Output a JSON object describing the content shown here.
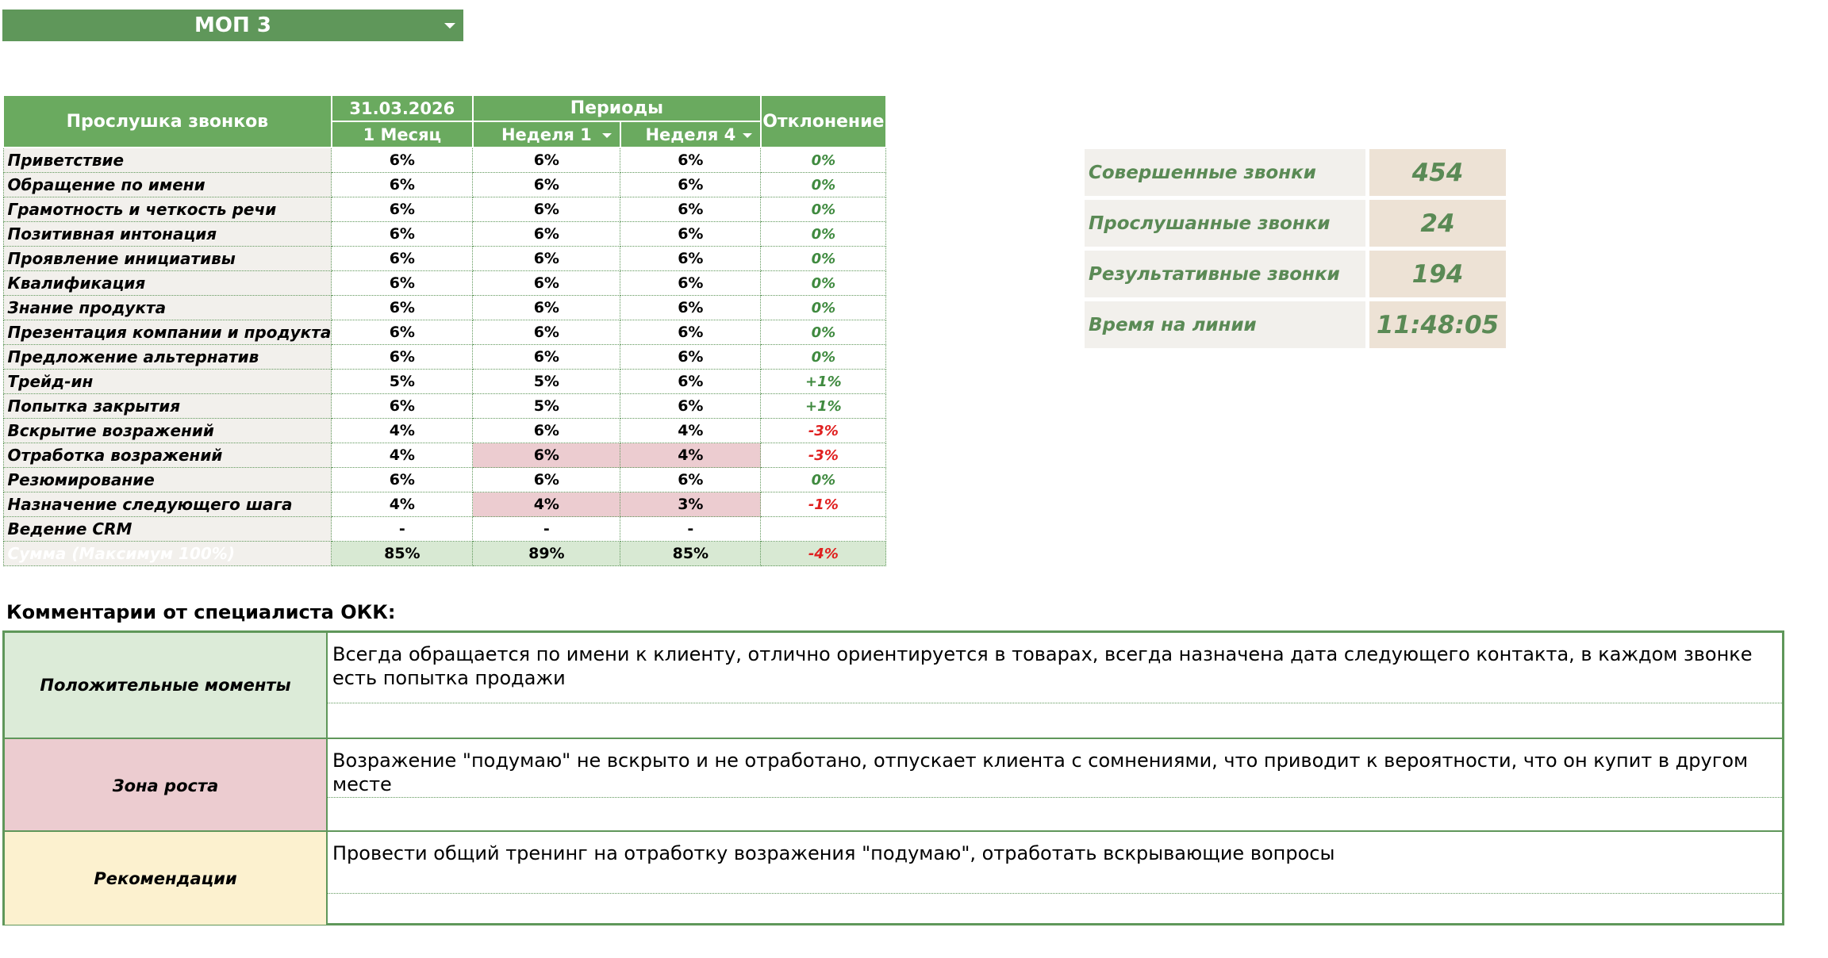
{
  "selector": {
    "label": "МОП 3"
  },
  "table": {
    "header": {
      "title": "Прослушка звонков",
      "date": "31.03.2026",
      "periods": "Периоды",
      "deviation": "Отклонение",
      "col_month": "1 Месяц",
      "col_week1": "Неделя 1",
      "col_week4": "Неделя 4"
    },
    "rows": [
      {
        "label": "Приветствие",
        "month": "6%",
        "week1": "6%",
        "week4": "6%",
        "dev": "0%",
        "tone": "pos",
        "hl": false
      },
      {
        "label": "Обращение по имени",
        "month": "6%",
        "week1": "6%",
        "week4": "6%",
        "dev": "0%",
        "tone": "pos",
        "hl": false
      },
      {
        "label": "Грамотность и четкость речи",
        "month": "6%",
        "week1": "6%",
        "week4": "6%",
        "dev": "0%",
        "tone": "pos",
        "hl": false
      },
      {
        "label": "Позитивная интонация",
        "month": "6%",
        "week1": "6%",
        "week4": "6%",
        "dev": "0%",
        "tone": "pos",
        "hl": false
      },
      {
        "label": "Проявление инициативы",
        "month": "6%",
        "week1": "6%",
        "week4": "6%",
        "dev": "0%",
        "tone": "pos",
        "hl": false
      },
      {
        "label": "Квалификация",
        "month": "6%",
        "week1": "6%",
        "week4": "6%",
        "dev": "0%",
        "tone": "pos",
        "hl": false
      },
      {
        "label": "Знание продукта",
        "month": "6%",
        "week1": "6%",
        "week4": "6%",
        "dev": "0%",
        "tone": "pos",
        "hl": false
      },
      {
        "label": "Презентация компании и продукта",
        "month": "6%",
        "week1": "6%",
        "week4": "6%",
        "dev": "0%",
        "tone": "pos",
        "hl": false
      },
      {
        "label": "Предложение альтернатив",
        "month": "6%",
        "week1": "6%",
        "week4": "6%",
        "dev": "0%",
        "tone": "pos",
        "hl": false
      },
      {
        "label": "Трейд-ин",
        "month": "5%",
        "week1": "5%",
        "week4": "6%",
        "dev": "+1%",
        "tone": "pos",
        "hl": false
      },
      {
        "label": "Попытка закрытия",
        "month": "6%",
        "week1": "5%",
        "week4": "6%",
        "dev": "+1%",
        "tone": "pos",
        "hl": false
      },
      {
        "label": "Вскрытие возражений",
        "month": "4%",
        "week1": "6%",
        "week4": "4%",
        "dev": "-3%",
        "tone": "neg",
        "hl": false
      },
      {
        "label": "Отработка возражений",
        "month": "4%",
        "week1": "6%",
        "week4": "4%",
        "dev": "-3%",
        "tone": "neg",
        "hl": true
      },
      {
        "label": "Резюмирование",
        "month": "6%",
        "week1": "6%",
        "week4": "6%",
        "dev": "0%",
        "tone": "pos",
        "hl": false
      },
      {
        "label": "Назначение следующего шага",
        "month": "4%",
        "week1": "4%",
        "week4": "3%",
        "dev": "-1%",
        "tone": "neg",
        "hl": true
      },
      {
        "label": "Ведение CRM",
        "month": "-",
        "week1": "-",
        "week4": "-",
        "dev": "",
        "tone": "pos",
        "hl": false
      }
    ],
    "sum": {
      "label": "Сумма (Максимум 100%)",
      "month": "85%",
      "week1": "89%",
      "week4": "85%",
      "dev": "-4%"
    }
  },
  "stats": [
    {
      "label": "Совершенные звонки",
      "value": "454"
    },
    {
      "label": "Прослушанные звонки",
      "value": "24"
    },
    {
      "label": "Результативные звонки",
      "value": "194"
    },
    {
      "label": "Время на линии",
      "value": "11:48:05"
    }
  ],
  "comments": {
    "title": "Комментарии от специалиста ОКК:",
    "sections": [
      {
        "label": "Положительные моменты",
        "text": "Всегда обращается по имени к клиенту, отлично ориентируется в товарах, всегда назначена дата следующего контакта, в каждом звонке есть попытка продажи",
        "color": "#dcebd8"
      },
      {
        "label": "Зона роста",
        "text": "Возражение \"подумаю\" не вскрыто и не отработано, отпускает клиента с сомнениями, что приводит к вероятности, что он купит в другом месте",
        "color": "#ecccd0"
      },
      {
        "label": "Рекомендации",
        "text": "Провести общий тренинг на отработку возражения \"подумаю\", отработать вскрывающие вопросы",
        "color": "#fcf1cf"
      }
    ]
  }
}
